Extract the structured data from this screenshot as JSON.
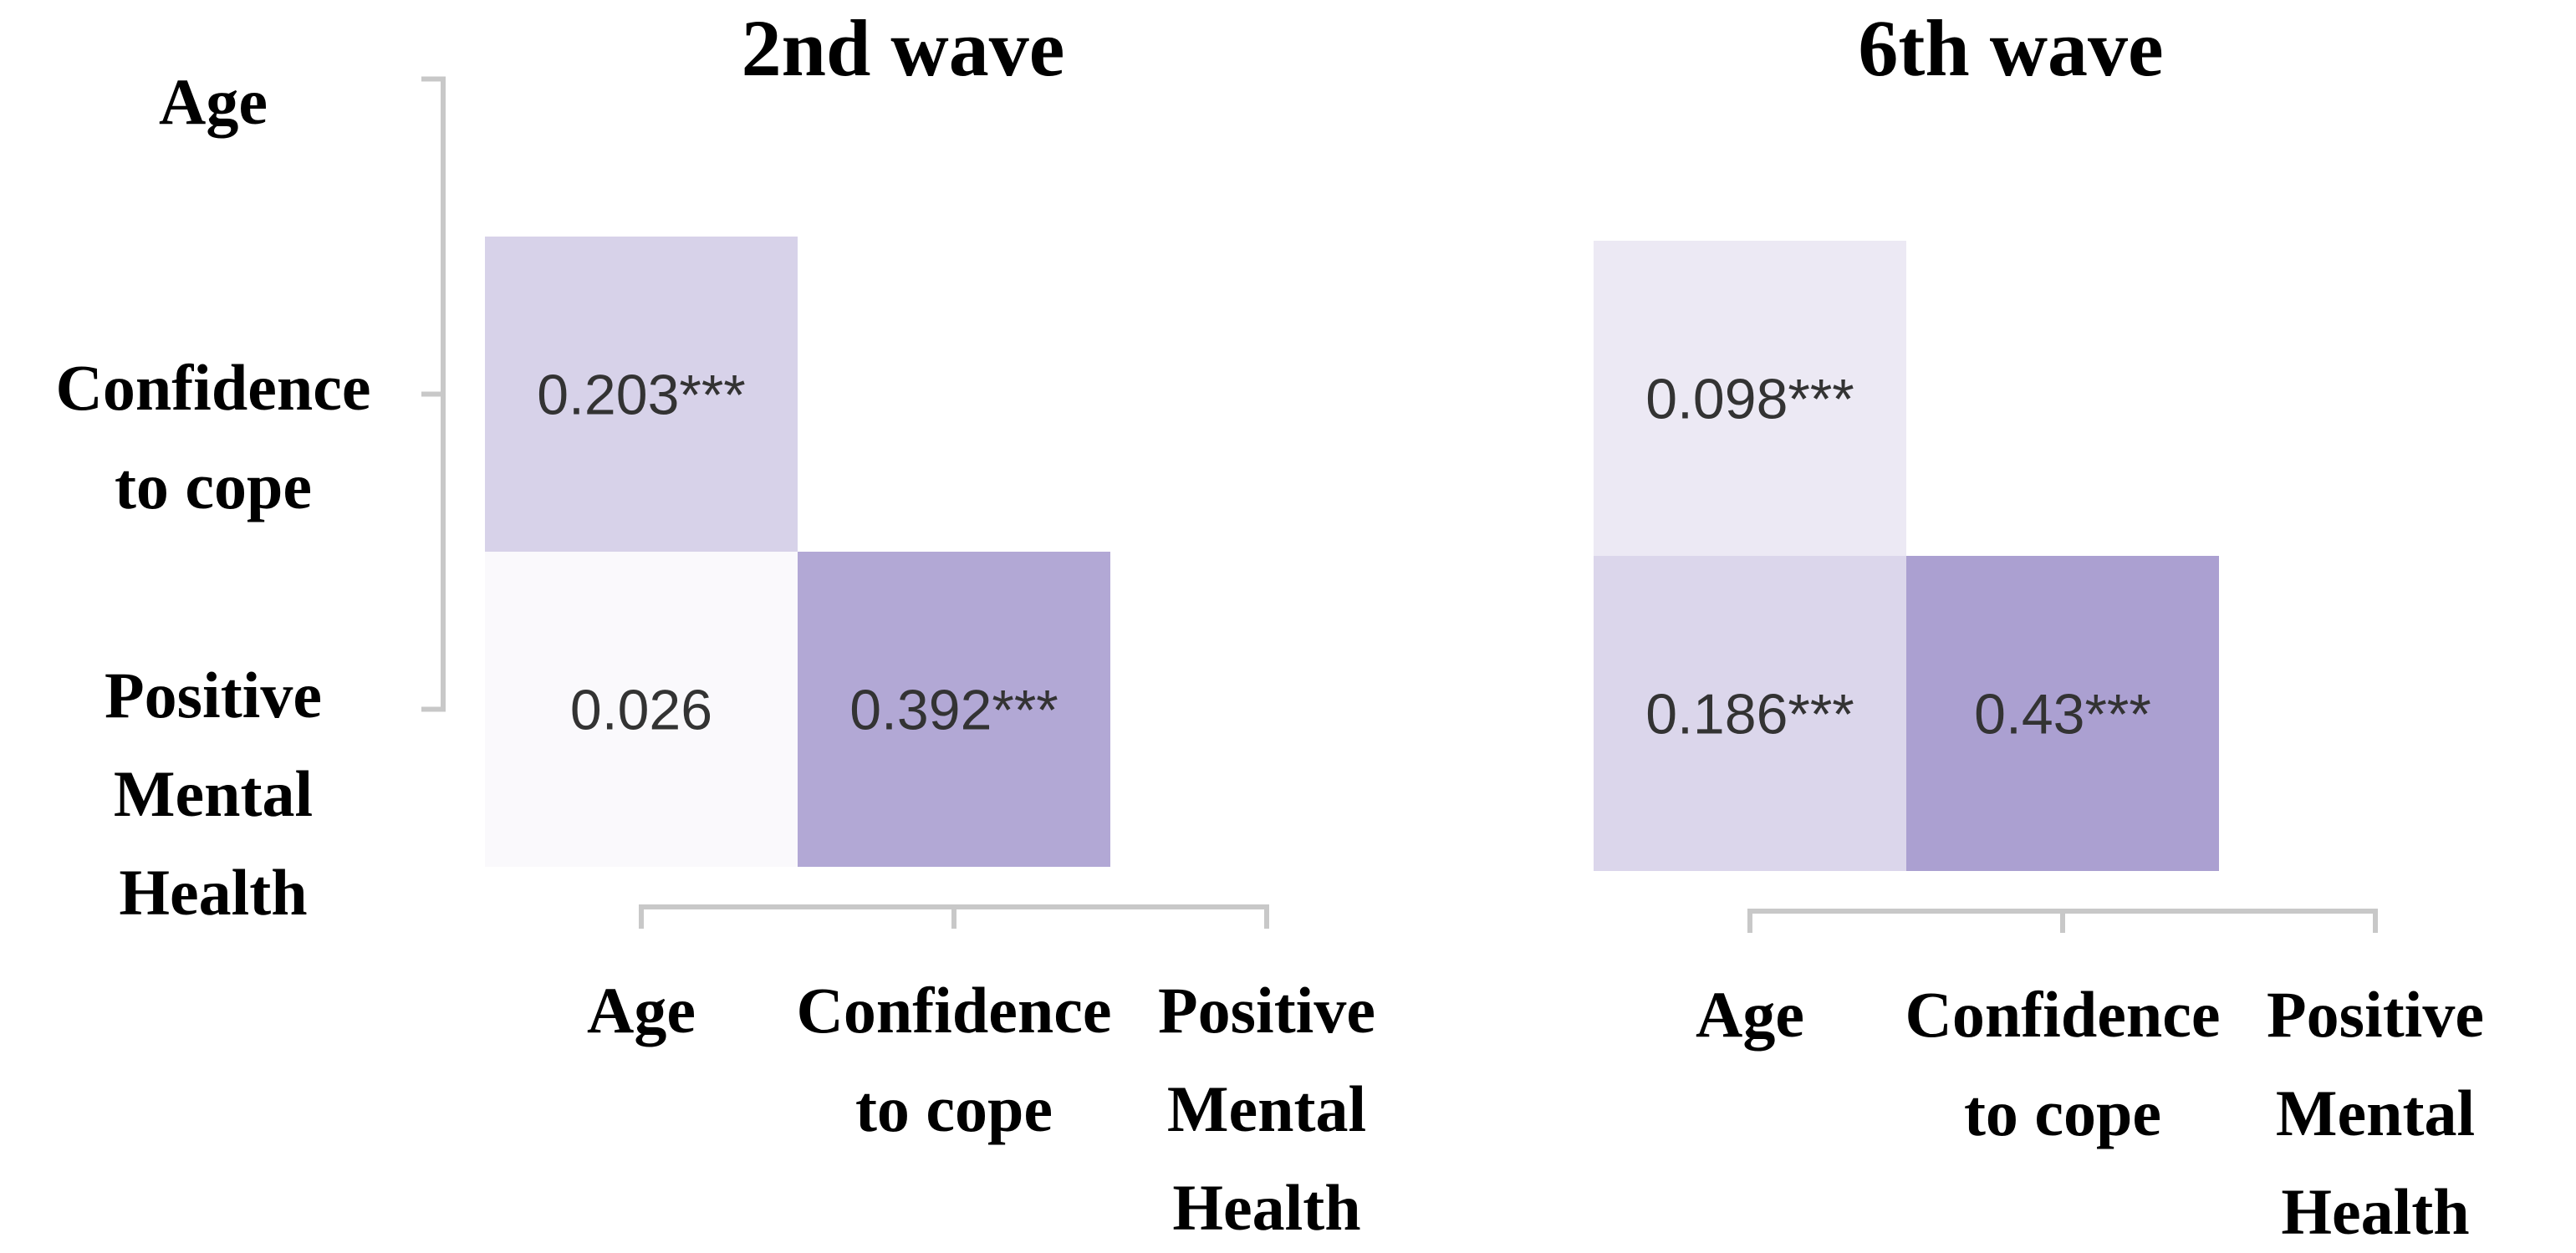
{
  "chart_data": [
    {
      "type": "heatmap",
      "title": "2nd wave",
      "variables": [
        "Age",
        "Confidence\nto cope",
        "Positive\nMental\nHealth"
      ],
      "cells": [
        {
          "row": 1,
          "col": 0,
          "value": 0.203,
          "label": "0.203***"
        },
        {
          "row": 2,
          "col": 0,
          "value": 0.026,
          "label": "0.026"
        },
        {
          "row": 2,
          "col": 1,
          "value": 0.392,
          "label": "0.392***"
        }
      ]
    },
    {
      "type": "heatmap",
      "title": "6th wave",
      "variables": [
        "Age",
        "Confidence\nto cope",
        "Positive\nMental\nHealth"
      ],
      "cells": [
        {
          "row": 1,
          "col": 0,
          "value": 0.098,
          "label": "0.098***"
        },
        {
          "row": 2,
          "col": 0,
          "value": 0.186,
          "label": "0.186***"
        },
        {
          "row": 2,
          "col": 1,
          "value": 0.43,
          "label": "0.43***"
        }
      ]
    }
  ],
  "colors": {
    "cell_low": "#ffffff",
    "cell_high": "#9d90c9",
    "axis": "#c8c8c8",
    "value_text": "#333333",
    "label_text": "#000000"
  }
}
